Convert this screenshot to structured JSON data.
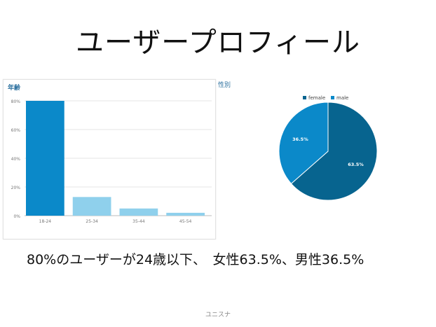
{
  "slide": {
    "title": "ユーザープロフィール",
    "caption": "80%のユーザーが24歳以下、　女性63.5%、男性36.5%",
    "footer": "ユニスナ"
  },
  "chart_data": [
    {
      "type": "bar",
      "title": "年齢",
      "categories": [
        "18-24",
        "25-34",
        "35-44",
        "45-54"
      ],
      "values": [
        80,
        13,
        5,
        2
      ],
      "ylim": [
        0,
        80
      ],
      "yticks": [
        "0%",
        "20%",
        "40%",
        "60%",
        "80%"
      ],
      "grid": true,
      "colors": [
        "#0b89c9",
        "#8fd0ec",
        "#8fd0ec",
        "#8fd0ec"
      ]
    },
    {
      "type": "pie",
      "title": "性別",
      "labels": [
        "female",
        "male"
      ],
      "values": [
        63.5,
        36.5
      ],
      "value_labels": [
        "63.5%",
        "36.5%"
      ],
      "colors": [
        "#07648f",
        "#0b89c9"
      ],
      "legend": "top"
    }
  ]
}
